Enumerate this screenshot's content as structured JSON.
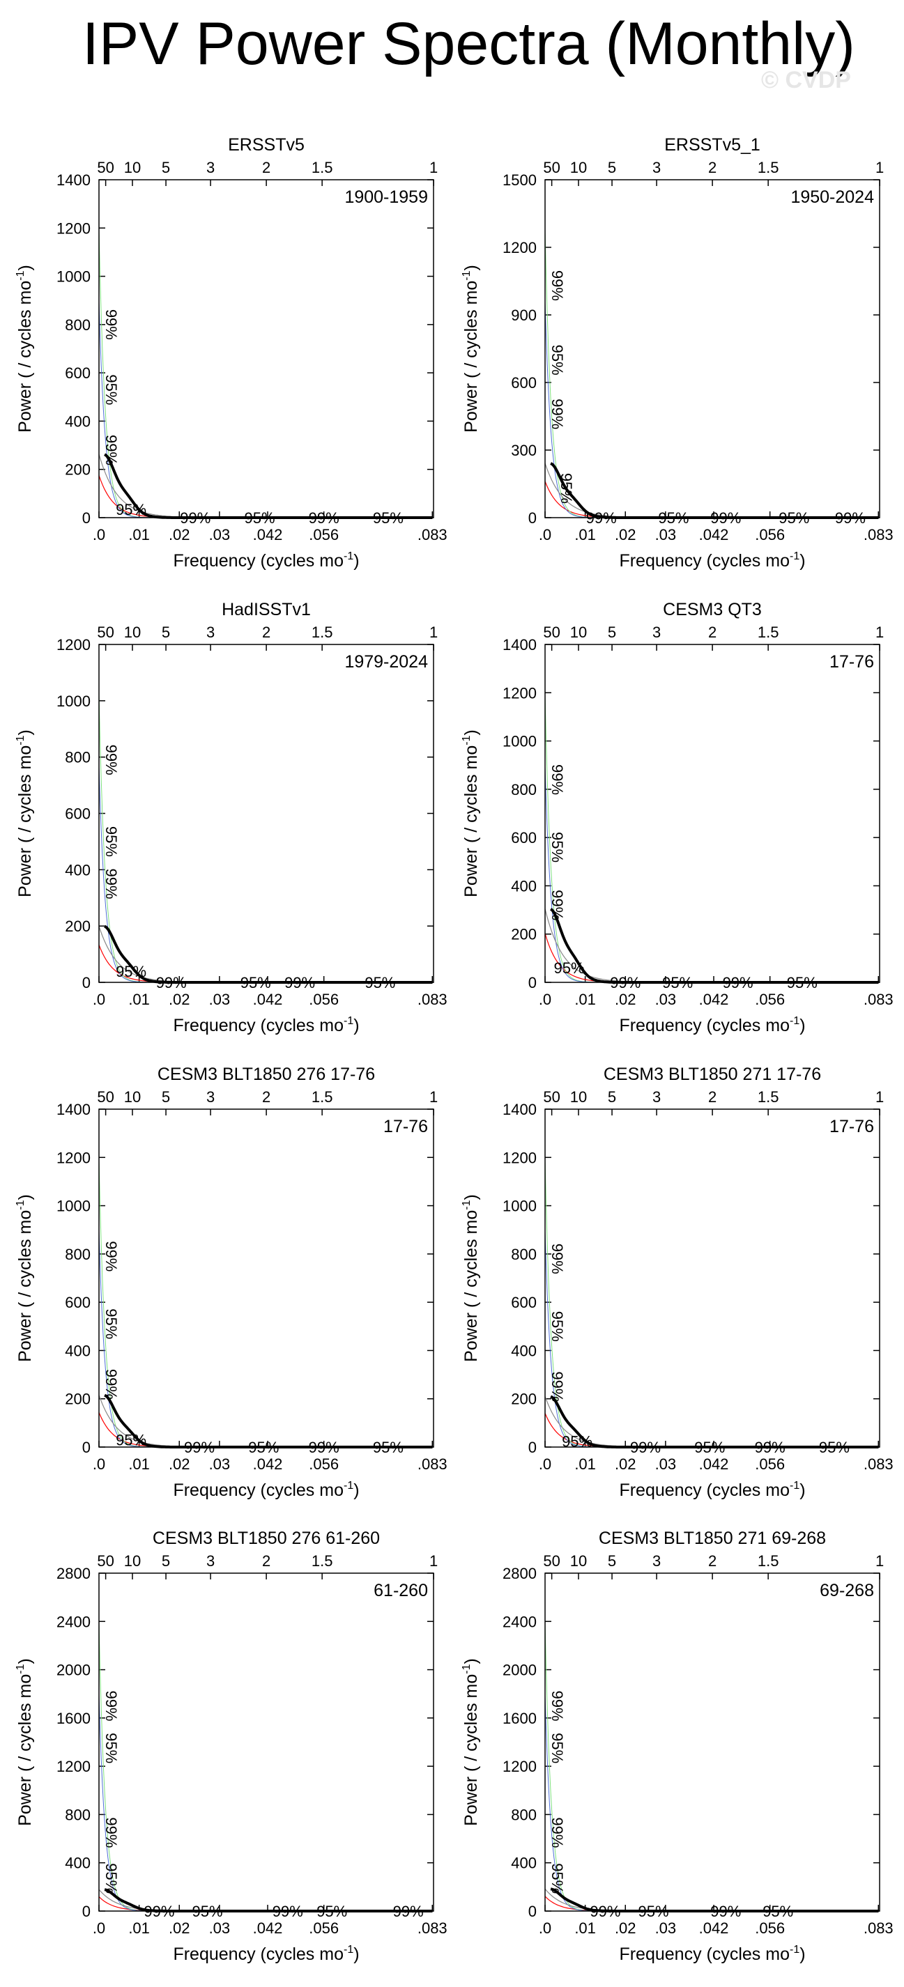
{
  "title": "IPV Power Spectra (Monthly)",
  "watermark": "© CVDP",
  "colors": {
    "spectrum": "#000000",
    "red_noise": "#ff0000",
    "conf_95": "#0000cc",
    "conf_99": "#00dd00",
    "conf_95_line": "#4d6fd6",
    "conf_99_line": "#7fe07f",
    "mean_line": "#888888"
  },
  "chart_data": [
    {
      "type": "line",
      "title": "ERSSTv5",
      "period": "1900-1959",
      "xlabel": "Frequency (cycles mo",
      "ylabel": "Power ( / cycles mo",
      "xlim": [
        0,
        0.0833
      ],
      "ylim": [
        0,
        1400
      ],
      "yticks": [
        0,
        200,
        400,
        600,
        800,
        1000,
        1200,
        1400
      ],
      "xtick_labels": [
        ".0",
        ".01",
        ".02",
        ".03",
        ".042",
        ".056",
        ".083"
      ],
      "xtick_values": [
        0,
        0.01,
        0.02,
        0.03,
        0.042,
        0.056,
        0.083
      ],
      "top_ticks": [
        "50",
        "10",
        "5",
        "3",
        "2",
        "1.5",
        "1"
      ],
      "top_tick_values": [
        0.00167,
        0.00833,
        0.01667,
        0.02778,
        0.04167,
        0.05556,
        0.08333
      ],
      "peak": 250,
      "conf_labels": [
        {
          "text": "99%",
          "x": 0.0017,
          "y": 800,
          "level": "99"
        },
        {
          "text": "95%",
          "x": 0.0017,
          "y": 530,
          "level": "95"
        },
        {
          "text": "99%",
          "x": 0.0017,
          "y": 280,
          "level": "99"
        },
        {
          "text": "95%",
          "x": 0.008,
          "y": 35,
          "level": "95"
        },
        {
          "text": "99%",
          "x": 0.024,
          "y": 0,
          "level": "99"
        },
        {
          "text": "95%",
          "x": 0.04,
          "y": 0,
          "level": "95"
        },
        {
          "text": "99%",
          "x": 0.056,
          "y": 0,
          "level": "99"
        },
        {
          "text": "95%",
          "x": 0.072,
          "y": 0,
          "level": "95"
        }
      ]
    },
    {
      "type": "line",
      "title": "ERSSTv5_1",
      "period": "1950-2024",
      "xlabel": "Frequency (cycles mo",
      "ylabel": "Power ( / cycles mo",
      "xlim": [
        0,
        0.0833
      ],
      "ylim": [
        0,
        1500
      ],
      "yticks": [
        0,
        300,
        600,
        900,
        1200,
        1500
      ],
      "xtick_labels": [
        ".0",
        ".01",
        ".02",
        ".03",
        ".042",
        ".056",
        ".083"
      ],
      "xtick_values": [
        0,
        0.01,
        0.02,
        0.03,
        0.042,
        0.056,
        0.083
      ],
      "top_ticks": [
        "50",
        "10",
        "5",
        "3",
        "2",
        "1.5",
        "1"
      ],
      "top_tick_values": [
        0.00167,
        0.00833,
        0.01667,
        0.02778,
        0.04167,
        0.05556,
        0.08333
      ],
      "peak": 230,
      "conf_labels": [
        {
          "text": "99%",
          "x": 0.0017,
          "y": 1030,
          "level": "99"
        },
        {
          "text": "95%",
          "x": 0.0017,
          "y": 700,
          "level": "95"
        },
        {
          "text": "99%",
          "x": 0.0017,
          "y": 460,
          "level": "99"
        },
        {
          "text": "95%",
          "x": 0.004,
          "y": 130,
          "level": "95"
        },
        {
          "text": "99%",
          "x": 0.014,
          "y": 0,
          "level": "99"
        },
        {
          "text": "95%",
          "x": 0.032,
          "y": 0,
          "level": "95"
        },
        {
          "text": "99%",
          "x": 0.045,
          "y": 0,
          "level": "99"
        },
        {
          "text": "95%",
          "x": 0.062,
          "y": 0,
          "level": "95"
        },
        {
          "text": "99%",
          "x": 0.076,
          "y": 0,
          "level": "99"
        }
      ]
    },
    {
      "type": "line",
      "title": "HadISSTv1",
      "period": "1979-2024",
      "xlabel": "Frequency (cycles mo",
      "ylabel": "Power ( / cycles mo",
      "xlim": [
        0,
        0.0833
      ],
      "ylim": [
        0,
        1200
      ],
      "yticks": [
        0,
        200,
        400,
        600,
        800,
        1000,
        1200
      ],
      "xtick_labels": [
        ".0",
        ".01",
        ".02",
        ".03",
        ".042",
        ".056",
        ".083"
      ],
      "xtick_values": [
        0,
        0.01,
        0.02,
        0.03,
        0.042,
        0.056,
        0.083
      ],
      "top_ticks": [
        "50",
        "10",
        "5",
        "3",
        "2",
        "1.5",
        "1"
      ],
      "top_tick_values": [
        0.00167,
        0.00833,
        0.01667,
        0.02778,
        0.04167,
        0.05556,
        0.08333
      ],
      "peak": 190,
      "conf_labels": [
        {
          "text": "99%",
          "x": 0.0017,
          "y": 790,
          "level": "99"
        },
        {
          "text": "95%",
          "x": 0.0017,
          "y": 500,
          "level": "95"
        },
        {
          "text": "99%",
          "x": 0.0017,
          "y": 350,
          "level": "99"
        },
        {
          "text": "95%",
          "x": 0.008,
          "y": 40,
          "level": "95"
        },
        {
          "text": "99%",
          "x": 0.018,
          "y": 0,
          "level": "99"
        },
        {
          "text": "95%",
          "x": 0.039,
          "y": 0,
          "level": "95"
        },
        {
          "text": "99%",
          "x": 0.05,
          "y": 0,
          "level": "99"
        },
        {
          "text": "95%",
          "x": 0.07,
          "y": 0,
          "level": "95"
        }
      ]
    },
    {
      "type": "line",
      "title": "CESM3 QT3",
      "period": "17-76",
      "xlabel": "Frequency (cycles mo",
      "ylabel": "Power ( / cycles mo",
      "xlim": [
        0,
        0.0833
      ],
      "ylim": [
        0,
        1400
      ],
      "yticks": [
        0,
        200,
        400,
        600,
        800,
        1000,
        1200,
        1400
      ],
      "xtick_labels": [
        ".0",
        ".01",
        ".02",
        ".03",
        ".042",
        ".056",
        ".083"
      ],
      "xtick_values": [
        0,
        0.01,
        0.02,
        0.03,
        0.042,
        0.056,
        0.083
      ],
      "top_ticks": [
        "50",
        "10",
        "5",
        "3",
        "2",
        "1.5",
        "1"
      ],
      "top_tick_values": [
        0.00167,
        0.00833,
        0.01667,
        0.02778,
        0.04167,
        0.05556,
        0.08333
      ],
      "peak": 290,
      "conf_labels": [
        {
          "text": "99%",
          "x": 0.0017,
          "y": 840,
          "level": "99"
        },
        {
          "text": "95%",
          "x": 0.0017,
          "y": 560,
          "level": "95"
        },
        {
          "text": "99%",
          "x": 0.0017,
          "y": 320,
          "level": "99"
        },
        {
          "text": "95%",
          "x": 0.006,
          "y": 60,
          "level": "95"
        },
        {
          "text": "99%",
          "x": 0.02,
          "y": 0,
          "level": "99"
        },
        {
          "text": "95%",
          "x": 0.033,
          "y": 0,
          "level": "95"
        },
        {
          "text": "99%",
          "x": 0.048,
          "y": 0,
          "level": "99"
        },
        {
          "text": "95%",
          "x": 0.064,
          "y": 0,
          "level": "95"
        }
      ]
    },
    {
      "type": "line",
      "title": "CESM3 BLT1850 276 17-76",
      "period": "17-76",
      "xlabel": "Frequency (cycles mo",
      "ylabel": "Power ( / cycles mo",
      "xlim": [
        0,
        0.0833
      ],
      "ylim": [
        0,
        1400
      ],
      "yticks": [
        0,
        200,
        400,
        600,
        800,
        1000,
        1200,
        1400
      ],
      "xtick_labels": [
        ".0",
        ".01",
        ".02",
        ".03",
        ".042",
        ".056",
        ".083"
      ],
      "xtick_values": [
        0,
        0.01,
        0.02,
        0.03,
        0.042,
        0.056,
        0.083
      ],
      "top_ticks": [
        "50",
        "10",
        "5",
        "3",
        "2",
        "1.5",
        "1"
      ],
      "top_tick_values": [
        0.00167,
        0.00833,
        0.01667,
        0.02778,
        0.04167,
        0.05556,
        0.08333
      ],
      "peak": 205,
      "conf_labels": [
        {
          "text": "99%",
          "x": 0.0017,
          "y": 790,
          "level": "99"
        },
        {
          "text": "95%",
          "x": 0.0017,
          "y": 510,
          "level": "95"
        },
        {
          "text": "99%",
          "x": 0.0017,
          "y": 260,
          "level": "99"
        },
        {
          "text": "95%",
          "x": 0.008,
          "y": 30,
          "level": "95"
        },
        {
          "text": "99%",
          "x": 0.025,
          "y": 0,
          "level": "99"
        },
        {
          "text": "95%",
          "x": 0.041,
          "y": 0,
          "level": "95"
        },
        {
          "text": "99%",
          "x": 0.056,
          "y": 0,
          "level": "99"
        },
        {
          "text": "95%",
          "x": 0.072,
          "y": 0,
          "level": "95"
        }
      ]
    },
    {
      "type": "line",
      "title": "CESM3 BLT1850 271 17-76",
      "period": "17-76",
      "xlabel": "Frequency (cycles mo",
      "ylabel": "Power ( / cycles mo",
      "xlim": [
        0,
        0.0833
      ],
      "ylim": [
        0,
        1400
      ],
      "yticks": [
        0,
        200,
        400,
        600,
        800,
        1000,
        1200,
        1400
      ],
      "xtick_labels": [
        ".0",
        ".01",
        ".02",
        ".03",
        ".042",
        ".056",
        ".083"
      ],
      "xtick_values": [
        0,
        0.01,
        0.02,
        0.03,
        0.042,
        0.056,
        0.083
      ],
      "top_ticks": [
        "50",
        "10",
        "5",
        "3",
        "2",
        "1.5",
        "1"
      ],
      "top_tick_values": [
        0.00167,
        0.00833,
        0.01667,
        0.02778,
        0.04167,
        0.05556,
        0.08333
      ],
      "peak": 200,
      "conf_labels": [
        {
          "text": "99%",
          "x": 0.0017,
          "y": 780,
          "level": "99"
        },
        {
          "text": "95%",
          "x": 0.0017,
          "y": 500,
          "level": "95"
        },
        {
          "text": "99%",
          "x": 0.0017,
          "y": 250,
          "level": "99"
        },
        {
          "text": "95%",
          "x": 0.008,
          "y": 25,
          "level": "95"
        },
        {
          "text": "99%",
          "x": 0.025,
          "y": 0,
          "level": "99"
        },
        {
          "text": "95%",
          "x": 0.041,
          "y": 0,
          "level": "95"
        },
        {
          "text": "99%",
          "x": 0.056,
          "y": 0,
          "level": "99"
        },
        {
          "text": "95%",
          "x": 0.072,
          "y": 0,
          "level": "95"
        }
      ]
    },
    {
      "type": "line",
      "title": "CESM3 BLT1850 276 61-260",
      "period": "61-260",
      "xlabel": "Frequency (cycles mo",
      "ylabel": "Power ( / cycles mo",
      "xlim": [
        0,
        0.0833
      ],
      "ylim": [
        0,
        2800
      ],
      "yticks": [
        0,
        400,
        800,
        1200,
        1600,
        2000,
        2400,
        2800
      ],
      "xtick_labels": [
        ".0",
        ".01",
        ".02",
        ".03",
        ".042",
        ".056",
        ".083"
      ],
      "xtick_values": [
        0,
        0.01,
        0.02,
        0.03,
        0.042,
        0.056,
        0.083
      ],
      "top_ticks": [
        "50",
        "10",
        "5",
        "3",
        "2",
        "1.5",
        "1"
      ],
      "top_tick_values": [
        0.00167,
        0.00833,
        0.01667,
        0.02778,
        0.04167,
        0.05556,
        0.08333
      ],
      "peak": 170,
      "conf_labels": [
        {
          "text": "99%",
          "x": 0.0017,
          "y": 1700,
          "level": "99"
        },
        {
          "text": "95%",
          "x": 0.0017,
          "y": 1350,
          "level": "95"
        },
        {
          "text": "99%",
          "x": 0.0017,
          "y": 650,
          "level": "99"
        },
        {
          "text": "95%",
          "x": 0.0017,
          "y": 270,
          "level": "95"
        },
        {
          "text": "99%",
          "x": 0.015,
          "y": 0,
          "level": "99"
        },
        {
          "text": "95%",
          "x": 0.027,
          "y": 0,
          "level": "95"
        },
        {
          "text": "99%",
          "x": 0.047,
          "y": 0,
          "level": "99"
        },
        {
          "text": "95%",
          "x": 0.058,
          "y": 0,
          "level": "95"
        },
        {
          "text": "99%",
          "x": 0.077,
          "y": 0,
          "level": "99"
        }
      ]
    },
    {
      "type": "line",
      "title": "CESM3 BLT1850 271 69-268",
      "period": "69-268",
      "xlabel": "Frequency (cycles mo",
      "ylabel": "Power ( / cycles mo",
      "xlim": [
        0,
        0.0833
      ],
      "ylim": [
        0,
        2800
      ],
      "yticks": [
        0,
        400,
        800,
        1200,
        1600,
        2000,
        2400,
        2800
      ],
      "xtick_labels": [
        ".0",
        ".01",
        ".02",
        ".03",
        ".042",
        ".056",
        ".083"
      ],
      "xtick_values": [
        0,
        0.01,
        0.02,
        0.03,
        0.042,
        0.056,
        0.083
      ],
      "top_ticks": [
        "50",
        "10",
        "5",
        "3",
        "2",
        "1.5",
        "1"
      ],
      "top_tick_values": [
        0.00167,
        0.00833,
        0.01667,
        0.02778,
        0.04167,
        0.05556,
        0.08333
      ],
      "peak": 175,
      "conf_labels": [
        {
          "text": "99%",
          "x": 0.0017,
          "y": 1700,
          "level": "99"
        },
        {
          "text": "95%",
          "x": 0.0017,
          "y": 1350,
          "level": "95"
        },
        {
          "text": "99%",
          "x": 0.0017,
          "y": 650,
          "level": "99"
        },
        {
          "text": "95%",
          "x": 0.0017,
          "y": 270,
          "level": "95"
        },
        {
          "text": "99%",
          "x": 0.015,
          "y": 0,
          "level": "99"
        },
        {
          "text": "95%",
          "x": 0.027,
          "y": 0,
          "level": "95"
        },
        {
          "text": "99%",
          "x": 0.045,
          "y": 0,
          "level": "99"
        },
        {
          "text": "95%",
          "x": 0.058,
          "y": 0,
          "level": "95"
        }
      ]
    }
  ]
}
